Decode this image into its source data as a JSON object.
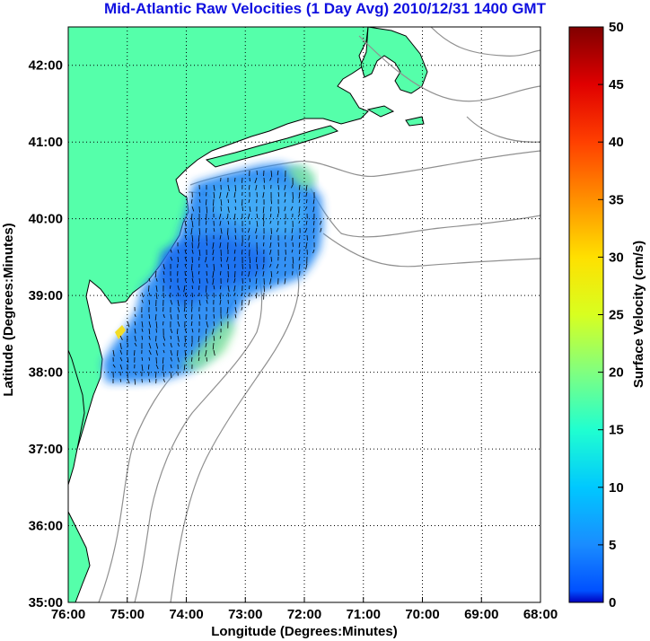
{
  "title": "Mid-Atlantic Raw Velocities (1 Day Avg) 2010/12/31 1400 GMT",
  "chart_data": {
    "type": "heatmap",
    "title": "Mid-Atlantic Raw Velocities (1 Day Avg) 2010/12/31 1400 GMT",
    "xlabel": "Longitude (Degrees:Minutes)",
    "ylabel": "Latitude (Degrees:Minutes)",
    "xlim": [
      -76,
      -68
    ],
    "ylim": [
      35,
      42.5
    ],
    "x_ticks": [
      "76:00",
      "75:00",
      "74:00",
      "73:00",
      "72:00",
      "71:00",
      "70:00",
      "69:00",
      "68:00"
    ],
    "y_ticks": [
      "35:00",
      "36:00",
      "37:00",
      "38:00",
      "39:00",
      "40:00",
      "41:00",
      "42:00"
    ],
    "grid": true,
    "colorbar": {
      "label": "Surface Velocity (cm/s)",
      "range": [
        0,
        50
      ],
      "ticks": [
        "0",
        "5",
        "10",
        "15",
        "20",
        "25",
        "30",
        "35",
        "40",
        "45",
        "50"
      ],
      "colormap": "jet"
    },
    "dominant_speed_range_cm_s": [
      3,
      18
    ]
  },
  "colors": {
    "land": "#55ffaa",
    "coastline": "#000000",
    "bathymetry": "#909090",
    "title": "#1010e0",
    "grid": "#000000"
  }
}
